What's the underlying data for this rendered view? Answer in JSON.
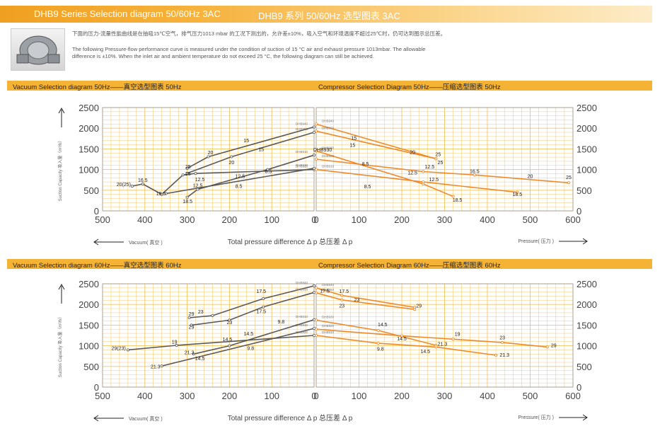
{
  "header": {
    "title_en": "DHB9 Series Selection diagram 50/60Hz 3AC",
    "title_cn": "DHB9 系列 50/60Hz 选型图表 3AC"
  },
  "intro": {
    "cn": "下面的压力-流量性能曲线是在抽吸15℃空气，排气压力1013 mbar 的工况下测出的，允许差±10%，吸入空气和环境温度不超过25℃时，仍可达到图示总压差。",
    "en1": "The following Pressure-flow performance curve is measured under the condition of suction of 15 °C air and exhaust pressure 1013mbar. The allowable",
    "en2": "difference is ±10%. When the inlet air and ambient temperature do not exceed 25 °C, the following diagram can still be achieved."
  },
  "sections": [
    {
      "vac_title": "Vacuum Selection diagram 50Hz——真空选型图表 50Hz",
      "comp_title": "Compressor Selection Diagram 50Hz——压缩选型图表 50Hz"
    },
    {
      "vac_title": "Vacuum Selection diagram 60Hz——真空选型图表 60Hz",
      "comp_title": "Compressor Selection Diagram 60Hz——压缩选型图表 60Hz"
    }
  ],
  "common": {
    "ylabel": "Suction Capacity 吸入量（m³/h）",
    "xlabel": "Total pressure difference    Δ p 总压差  Δ p",
    "vacuum_arrow": "Vacuum( 真空 )",
    "pressure_arrow": "Pressure( 压力 )",
    "left_ticks": [
      "500",
      "400",
      "300",
      "200",
      "100",
      "0"
    ],
    "right_ticks": [
      "0",
      "100",
      "200",
      "300",
      "400",
      "500",
      "600"
    ],
    "y_ticks": [
      "0",
      "500",
      "1000",
      "1500",
      "2000",
      "2500"
    ]
  },
  "colors": {
    "vacuum": "#5a5a5a",
    "compressor": "#ef8a2a",
    "grid": "#f3c460",
    "axis": "#999999",
    "bar": "#f5b335"
  },
  "chart_data": [
    {
      "type": "line",
      "title": "Vacuum Selection diagram 50Hz——真空选型图表 50Hz",
      "xlabel": "Total pressure difference Δ p 总压差 Δ p",
      "ylabel": "Suction Capacity 吸入量（m³/h）",
      "xlim": [
        500,
        0
      ],
      "ylim": [
        0,
        2500
      ],
      "series": [
        {
          "name": "DHB920",
          "points": [
            [
              430,
              600
            ],
            [
              405,
              650
            ],
            [
              360,
              400
            ],
            [
              310,
              870
            ],
            [
              280,
              905
            ],
            [
              0,
              1000
            ]
          ]
        },
        {
          "name": "DHB930",
          "points": [
            [
              350,
              420
            ],
            [
              0,
              1030
            ]
          ]
        },
        {
          "name": "DHB910",
          "points": [
            [
              300,
              330
            ],
            [
              275,
              520
            ],
            [
              110,
              1000
            ],
            [
              0,
              1350
            ]
          ]
        },
        {
          "name": "DHB940",
          "points": [
            [
              300,
              1030
            ],
            [
              250,
              1310
            ],
            [
              0,
              2030
            ]
          ]
        },
        {
          "name": "DHB950",
          "points": [
            [
              300,
              910
            ],
            [
              195,
              1310
            ],
            [
              0,
              1900
            ]
          ]
        }
      ],
      "labels": [
        {
          "x": 450,
          "y": 600,
          "text": "20(25)"
        },
        {
          "x": 405,
          "y": 700,
          "text": "16.5"
        },
        {
          "x": 362,
          "y": 380,
          "text": "18.5"
        },
        {
          "x": 299,
          "y": 190,
          "text": "18.5"
        },
        {
          "x": 275,
          "y": 570,
          "text": "12.5"
        },
        {
          "x": 270,
          "y": 720,
          "text": "12.5"
        },
        {
          "x": 298,
          "y": 1030,
          "text": "25"
        },
        {
          "x": 298,
          "y": 860,
          "text": "25"
        },
        {
          "x": 245,
          "y": 1370,
          "text": "20"
        },
        {
          "x": 195,
          "y": 1130,
          "text": "20"
        },
        {
          "x": 160,
          "y": 1660,
          "text": "15"
        },
        {
          "x": 125,
          "y": 1450,
          "text": "15"
        },
        {
          "x": 175,
          "y": 800,
          "text": "12.5"
        },
        {
          "x": 178,
          "y": 560,
          "text": "8.5"
        },
        {
          "x": 108,
          "y": 920,
          "text": "8.5"
        }
      ]
    },
    {
      "type": "line",
      "title": "Compressor Selection Diagram 50Hz——压缩选型图表 50Hz",
      "xlabel": "Total pressure difference Δ p 总压差 Δ p",
      "ylabel": "Suction Capacity 吸入量（m³/h）",
      "xlim": [
        0,
        600
      ],
      "ylim": [
        0,
        2500
      ],
      "series": [
        {
          "name": "DHB940",
          "points": [
            [
              0,
              2100
            ],
            [
              280,
              1260
            ]
          ]
        },
        {
          "name": "DHB950",
          "points": [
            [
              0,
              1930
            ],
            [
              280,
              1260
            ]
          ]
        },
        {
          "name": "DHB930",
          "points": [
            [
              0,
              1450
            ],
            [
              250,
              650
            ],
            [
              320,
              350
            ]
          ]
        },
        {
          "name": "DHB920",
          "points": [
            [
              0,
              1250
            ],
            [
              250,
              950
            ],
            [
              370,
              870
            ],
            [
              590,
              680
            ]
          ]
        },
        {
          "name": "DHB910",
          "points": [
            [
              0,
              1000
            ],
            [
              250,
              700
            ],
            [
              470,
              450
            ]
          ]
        }
      ],
      "labels": [
        {
          "x": 85,
          "y": 1550,
          "text": "15"
        },
        {
          "x": 88,
          "y": 1720,
          "text": "15"
        },
        {
          "x": 115,
          "y": 1100,
          "text": "8.5"
        },
        {
          "x": 120,
          "y": 550,
          "text": "8.5"
        },
        {
          "x": 225,
          "y": 1380,
          "text": "20"
        },
        {
          "x": 285,
          "y": 1330,
          "text": "25"
        },
        {
          "x": 290,
          "y": 1130,
          "text": "25"
        },
        {
          "x": 265,
          "y": 1030,
          "text": "12.5"
        },
        {
          "x": 225,
          "y": 880,
          "text": "12.5"
        },
        {
          "x": 275,
          "y": 720,
          "text": "12.5"
        },
        {
          "x": 330,
          "y": 220,
          "text": "18.5"
        },
        {
          "x": 370,
          "y": 920,
          "text": "16.5"
        },
        {
          "x": 470,
          "y": 360,
          "text": "18.5"
        },
        {
          "x": 500,
          "y": 800,
          "text": "20"
        },
        {
          "x": 590,
          "y": 770,
          "text": "25"
        },
        {
          "x": 15,
          "y": 1440,
          "text": "DHB930"
        }
      ]
    },
    {
      "type": "line",
      "title": "Vacuum Selection diagram 60Hz——真空选型图表 60Hz",
      "xlabel": "Total pressure difference Δ p 总压差 Δ p",
      "ylabel": "Suction Capacity 吸入量（m³/h）",
      "xlim": [
        500,
        0
      ],
      "ylim": [
        0,
        2500
      ],
      "series": [
        {
          "name": "DHB920",
          "points": [
            [
              440,
              900
            ],
            [
              325,
              1010
            ],
            [
              0,
              1250
            ]
          ]
        },
        {
          "name": "DHB930",
          "points": [
            [
              360,
              510
            ],
            [
              0,
              1420
            ]
          ]
        },
        {
          "name": "DHB910",
          "points": [
            [
              285,
              800
            ],
            [
              200,
              1000
            ],
            [
              0,
              1630
            ]
          ]
        },
        {
          "name": "DHB940",
          "points": [
            [
              295,
              1680
            ],
            [
              240,
              1730
            ],
            [
              120,
              2140
            ],
            [
              0,
              2450
            ]
          ]
        },
        {
          "name": "DHB950",
          "points": [
            [
              290,
              1500
            ],
            [
              200,
              1620
            ],
            [
              120,
              1940
            ],
            [
              0,
              2290
            ]
          ]
        }
      ],
      "labels": [
        {
          "x": 462,
          "y": 900,
          "text": "29(23)"
        },
        {
          "x": 330,
          "y": 1050,
          "text": "19"
        },
        {
          "x": 375,
          "y": 450,
          "text": "21.3"
        },
        {
          "x": 295,
          "y": 800,
          "text": "21.3"
        },
        {
          "x": 270,
          "y": 650,
          "text": "14.5"
        },
        {
          "x": 205,
          "y": 1110,
          "text": "14.5"
        },
        {
          "x": 155,
          "y": 1250,
          "text": "14.5"
        },
        {
          "x": 150,
          "y": 900,
          "text": "9.8"
        },
        {
          "x": 78,
          "y": 1540,
          "text": "9.8"
        },
        {
          "x": 290,
          "y": 1730,
          "text": "29"
        },
        {
          "x": 268,
          "y": 1780,
          "text": "23"
        },
        {
          "x": 290,
          "y": 1410,
          "text": "29"
        },
        {
          "x": 200,
          "y": 1520,
          "text": "23"
        },
        {
          "x": 125,
          "y": 2280,
          "text": "17.5"
        },
        {
          "x": 125,
          "y": 1790,
          "text": "17.5"
        }
      ]
    },
    {
      "type": "line",
      "title": "Compressor Selection Diagram 60Hz——压缩选型图表 60Hz",
      "xlabel": "Total pressure difference Δ p 总压差 Δ p",
      "ylabel": "Suction Capacity 吸入量（m³/h）",
      "xlim": [
        0,
        600
      ],
      "ylim": [
        0,
        2500
      ],
      "series": [
        {
          "name": "DHB940",
          "points": [
            [
              0,
              2400
            ],
            [
              60,
              2220
            ],
            [
              230,
              1930
            ]
          ]
        },
        {
          "name": "DHB950",
          "points": [
            [
              0,
              2280
            ],
            [
              60,
              2110
            ],
            [
              230,
              1880
            ]
          ]
        },
        {
          "name": "DHB930",
          "points": [
            [
              0,
              1620
            ],
            [
              145,
              1370
            ],
            [
              280,
              1010
            ]
          ]
        },
        {
          "name": "DHB920",
          "points": [
            [
              0,
              1400
            ],
            [
              200,
              1240
            ],
            [
              320,
              1160
            ],
            [
              435,
              1080
            ],
            [
              540,
              970
            ]
          ]
        },
        {
          "name": "DHB910",
          "points": [
            [
              0,
              1250
            ],
            [
              145,
              1060
            ],
            [
              280,
              970
            ],
            [
              420,
              770
            ]
          ]
        }
      ],
      "labels": [
        {
          "x": 20,
          "y": 2290,
          "text": "17.5"
        },
        {
          "x": 65,
          "y": 2280,
          "text": "17.5"
        },
        {
          "x": 60,
          "y": 1930,
          "text": "23"
        },
        {
          "x": 95,
          "y": 2070,
          "text": "23"
        },
        {
          "x": 240,
          "y": 1930,
          "text": "29"
        },
        {
          "x": 155,
          "y": 1470,
          "text": "14.5"
        },
        {
          "x": 150,
          "y": 880,
          "text": "9.8"
        },
        {
          "x": 200,
          "y": 1130,
          "text": "14.5"
        },
        {
          "x": 295,
          "y": 1000,
          "text": "21.3"
        },
        {
          "x": 255,
          "y": 820,
          "text": "14.5"
        },
        {
          "x": 330,
          "y": 1240,
          "text": "19"
        },
        {
          "x": 435,
          "y": 1160,
          "text": "23"
        },
        {
          "x": 555,
          "y": 970,
          "text": "29"
        },
        {
          "x": 440,
          "y": 740,
          "text": "21.3"
        }
      ]
    }
  ]
}
